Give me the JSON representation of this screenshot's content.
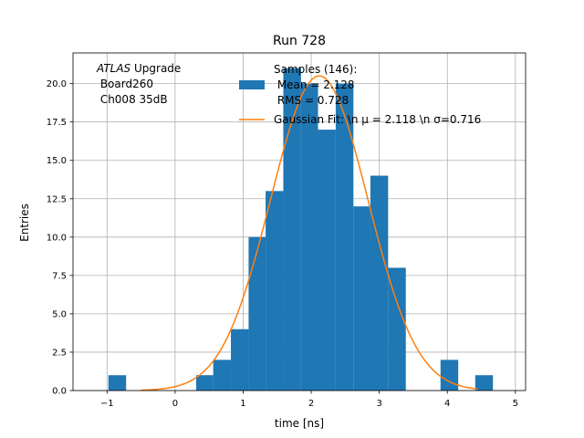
{
  "chart_data": {
    "type": "bar",
    "title": "Run 728",
    "xlabel": "time [ns]",
    "ylabel": "Entries",
    "xlim": [
      -1.5,
      5.15
    ],
    "ylim": [
      0,
      22
    ],
    "grid": true,
    "xticks": [
      -1,
      0,
      1,
      2,
      3,
      4,
      5
    ],
    "xtick_labels": [
      "−1",
      "0",
      "1",
      "2",
      "3",
      "4",
      "5"
    ],
    "yticks": [
      0,
      2.5,
      5,
      7.5,
      10,
      12.5,
      15,
      17.5,
      20
    ],
    "ytick_labels": [
      "0.0",
      "2.5",
      "5.0",
      "7.5",
      "10.0",
      "12.5",
      "15.0",
      "17.5",
      "20.0"
    ],
    "histogram": {
      "bin_edges": [
        -0.98,
        -0.72,
        -0.46,
        -0.21,
        0.05,
        0.31,
        0.56,
        0.82,
        1.08,
        1.33,
        1.59,
        1.85,
        2.1,
        2.36,
        2.62,
        2.87,
        3.13,
        3.39,
        3.64,
        3.9,
        4.16,
        4.41,
        4.67
      ],
      "counts": [
        1,
        0,
        0,
        0,
        0,
        1,
        2,
        4,
        10,
        13,
        21,
        20,
        17,
        20,
        12,
        14,
        8,
        0,
        0,
        2,
        0,
        1
      ],
      "color": "#1f77b4"
    },
    "gaussian_fit": {
      "amplitude": 20.5,
      "mu": 2.118,
      "sigma": 0.716,
      "x_range": [
        -0.5,
        4.45
      ],
      "color": "#ff7f0e"
    },
    "annotation": {
      "line1_italic": "ATLAS",
      "line1_rest": " Upgrade",
      "line2": " Board260",
      "line3": " Ch008 35dB"
    },
    "legend": {
      "placement": "top-right",
      "series1_lines": [
        "Samples (146):",
        " Mean = 2.128",
        " RMS = 0.728"
      ],
      "series2_label": "Gaussian Fit: \\n μ = 2.118 \\n σ=0.716"
    }
  }
}
